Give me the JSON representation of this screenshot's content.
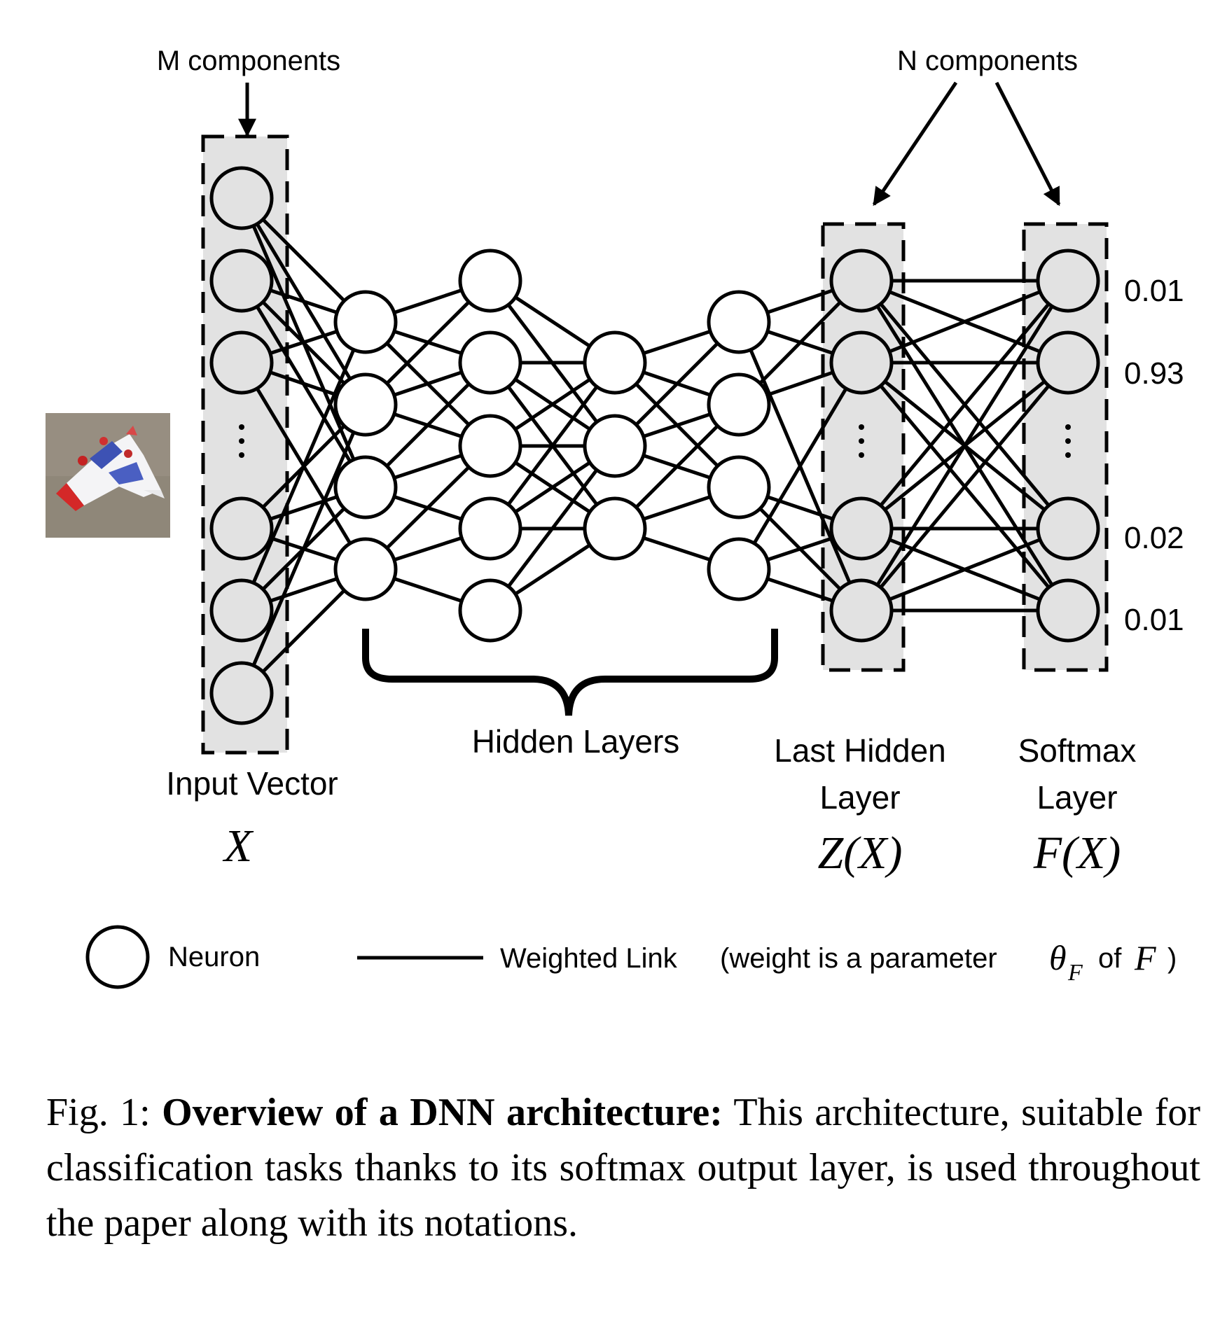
{
  "labels": {
    "m_components": "M components",
    "n_components": "N components",
    "hidden_layers": "Hidden Layers",
    "input_vector": "Input Vector",
    "input_symbol": "X",
    "last_hidden_line1": "Last Hidden",
    "last_hidden_line2": "Layer",
    "last_hidden_symbol": "Z(X)",
    "softmax_line1": "Softmax",
    "softmax_line2": "Layer",
    "softmax_symbol": "F(X)"
  },
  "outputs": [
    "0.01",
    "0.93",
    "0.02",
    "0.01"
  ],
  "legend": {
    "neuron": "Neuron",
    "weighted_link": "Weighted Link",
    "weight_note_open": "(weight is a parameter",
    "theta": "θ",
    "theta_sub": "F",
    "of": "of",
    "f_symbol": "F",
    "close_paren": ")"
  },
  "caption": {
    "prefix": "Fig. 1: ",
    "bold": "Overview of a DNN architecture:",
    "text": " This architecture, suitable for classification tasks thanks to its softmax output layer, is used throughout the paper along with its notations."
  },
  "colors": {
    "layer_box_fill": "#e2e2e2",
    "neuron_fill_shaded": "#e2e2e2",
    "neuron_fill_plain": "#ffffff",
    "stroke": "#000000"
  }
}
